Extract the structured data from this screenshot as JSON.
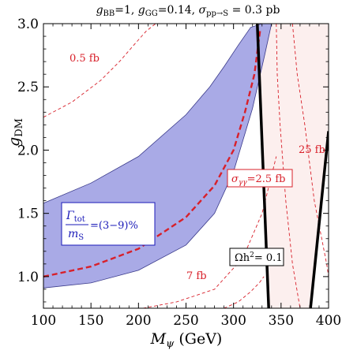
{
  "chart_data": {
    "type": "line",
    "title": "g_BB=1, g_GG=0.14, σ_pp→S = 0.3 pb",
    "title_parts": {
      "gbb_base": "g",
      "gbb_sub": "BB",
      "gbb_val": "=1, ",
      "ggg_base": "g",
      "ggg_sub": "GG",
      "ggg_val": "=0.14, ",
      "sigma": "σ",
      "sigma_sub": "pp→S",
      "sigma_val": " = 0.3 pb"
    },
    "xlabel": "M_ψ (GeV)",
    "xlabel_parts": {
      "base": "M",
      "sub": "ψ",
      "unit": " (GeV)"
    },
    "ylabel": "g_DM",
    "ylabel_parts": {
      "base": "g",
      "sub": "DM"
    },
    "xlim": [
      100,
      400
    ],
    "ylim": [
      0.75,
      3.0
    ],
    "x_ticks": [
      "100",
      "150",
      "200",
      "250",
      "300",
      "350",
      "400"
    ],
    "y_ticks": [
      "1.0",
      "1.5",
      "2.0",
      "2.5",
      "3.0"
    ],
    "grid": false,
    "colors": {
      "band_fill": "#a9aae6",
      "band_edge": "#3a3a8a",
      "red": "#d8202a",
      "relic_band": "#fcefee",
      "black": "#000000"
    },
    "series": [
      {
        "name": "σ_γγ=2.5 fb",
        "style": "dashed-thick",
        "x": [
          100,
          150,
          200,
          250,
          280,
          300,
          312,
          322,
          328
        ],
        "y": [
          1.0,
          1.08,
          1.22,
          1.47,
          1.72,
          2.0,
          2.3,
          2.6,
          2.95
        ]
      },
      {
        "name": "0.5 fb",
        "style": "dashed-thin",
        "x": [
          100,
          130,
          160,
          180,
          195,
          208,
          218
        ],
        "y": [
          2.26,
          2.38,
          2.55,
          2.7,
          2.83,
          2.94,
          3.0
        ]
      },
      {
        "name": "7 fb",
        "style": "dashed-thin",
        "x": [
          205,
          240,
          280,
          310,
          330,
          345
        ],
        "y": [
          0.75,
          0.8,
          0.9,
          1.15,
          1.5,
          1.95
        ]
      },
      {
        "name": "7 fb (lower)",
        "style": "dashed-thin",
        "x": [
          290,
          305,
          318,
          327,
          332
        ],
        "y": [
          0.75,
          0.8,
          0.88,
          0.95,
          1.0
        ]
      },
      {
        "name": "25 fb",
        "style": "dashed-thin",
        "x": [
          345,
          346,
          349,
          355,
          362,
          370
        ],
        "y": [
          3.0,
          2.6,
          2.2,
          1.6,
          1.1,
          0.75
        ]
      },
      {
        "name": "25 fb (right)",
        "style": "dashed-thin",
        "x": [
          362,
          367,
          375,
          385,
          398,
          400
        ],
        "y": [
          3.0,
          2.6,
          2.2,
          1.6,
          1.1,
          1.0
        ]
      }
    ],
    "width_band": {
      "label": "Γ_tot/m_S=(3−9)%",
      "upper": {
        "x": [
          100,
          150,
          200,
          250,
          275,
          290,
          305,
          318,
          330,
          335
        ],
        "y": [
          1.58,
          1.74,
          1.95,
          2.28,
          2.5,
          2.66,
          2.83,
          2.97,
          3.0,
          3.0
        ]
      },
      "lower": {
        "x": [
          100,
          150,
          200,
          250,
          280,
          300,
          320,
          333,
          340
        ],
        "y": [
          0.91,
          0.95,
          1.05,
          1.25,
          1.5,
          1.83,
          2.33,
          2.76,
          3.0
        ]
      }
    },
    "relic_lines": {
      "label": "Ωh²= 0.1",
      "left": {
        "x": [
          325,
          337
        ],
        "y": [
          3.0,
          0.75
        ]
      },
      "right": {
        "x": [
          381,
          400
        ],
        "y": [
          0.75,
          2.15
        ]
      }
    },
    "relic_band": {
      "x_from": [
        325,
        400
      ],
      "x_to": [
        337,
        400
      ]
    },
    "annotations": {
      "half_fb": "0.5 fb",
      "seven_fb": "7 fb",
      "twentyfive_fb": "25 fb",
      "sigma_label_base": "σ",
      "sigma_label_sub": "γγ",
      "sigma_label_val": "=2.5 fb",
      "gamma_num": "Γ",
      "gamma_num_sub": "tot",
      "gamma_den": "m",
      "gamma_den_sub": "S",
      "gamma_val": "=(3−9)%",
      "omega": "Ωh",
      "omega_sup": "2",
      "omega_val": "= 0.1"
    }
  }
}
